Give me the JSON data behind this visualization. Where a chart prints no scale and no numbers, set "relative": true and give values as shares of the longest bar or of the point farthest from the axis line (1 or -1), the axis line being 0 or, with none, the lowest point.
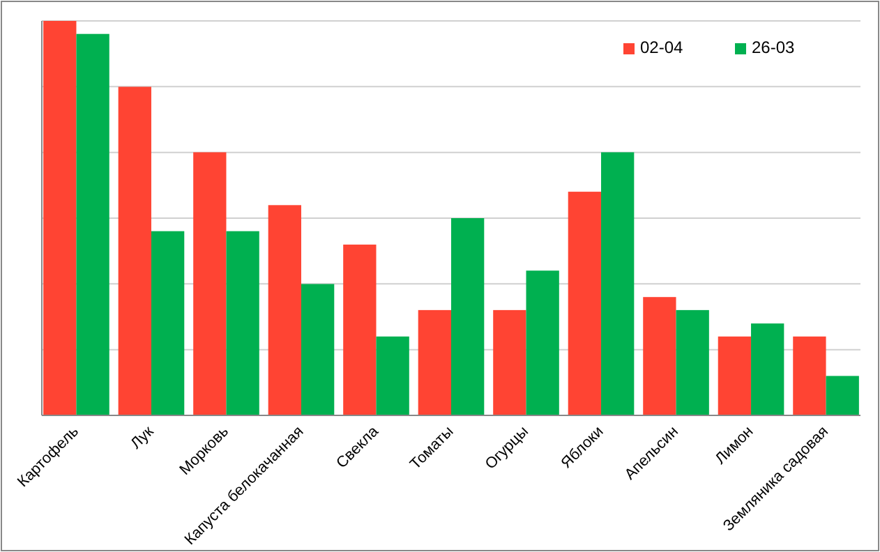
{
  "chart_data": {
    "type": "bar",
    "relative": true,
    "grid": "y",
    "legend": "top right",
    "categories": [
      "Картофель",
      "Лук",
      "Морковь",
      "Капуста белокачанная",
      "Свекла",
      "Томаты",
      "Огурцы",
      "Яблоки",
      "Апельсин",
      "Лимон",
      "Земляника садовая"
    ],
    "series": [
      {
        "name": "02-04",
        "color": "#ff4433",
        "values": [
          1,
          0.833,
          0.667,
          0.533,
          0.433,
          0.267,
          0.267,
          0.567,
          0.3,
          0.2,
          0.2
        ]
      },
      {
        "name": "26-03",
        "color": "#00b050",
        "values": [
          0.967,
          0.467,
          0.467,
          0.333,
          0.2,
          0.5,
          0.367,
          0.667,
          0.267,
          0.233,
          0.1
        ]
      }
    ]
  }
}
